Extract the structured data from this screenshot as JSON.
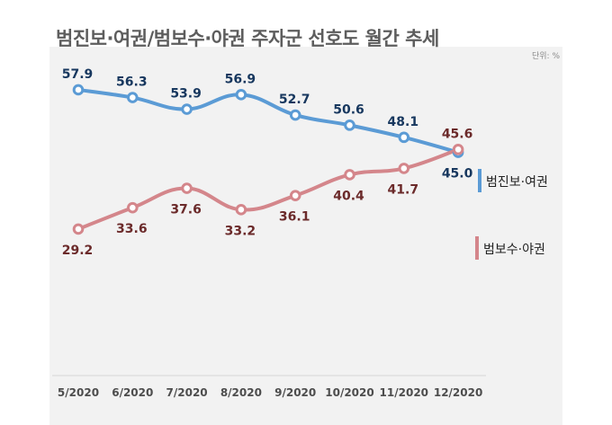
{
  "title": "범진보·여권/범보수·야권 주자군 선호도 월간 추세",
  "unit_label": "단위: %",
  "colors": {
    "progressive": "#5b9bd5",
    "conservative": "#d4868b",
    "progressive_label": "#17375e",
    "conservative_label": "#6b2a2a"
  },
  "chart_data": {
    "type": "line",
    "title": "범진보·여권/범보수·야권 주자군 선호도 월간 추세",
    "xlabel": "",
    "ylabel": "",
    "unit": "%",
    "x": [
      "5/2020",
      "6/2020",
      "7/2020",
      "8/2020",
      "9/2020",
      "10/2020",
      "11/2020",
      "12/2020"
    ],
    "ylim": [
      20,
      65
    ],
    "grid": false,
    "legend_position": "right",
    "series": [
      {
        "name": "범진보·여권",
        "values": [
          57.9,
          56.3,
          53.9,
          56.9,
          52.7,
          50.6,
          48.1,
          45.0
        ],
        "labels": [
          "57.9",
          "56.3",
          "53.9",
          "56.9",
          "52.7",
          "50.6",
          "48.1",
          "45.0"
        ]
      },
      {
        "name": "범보수·야권",
        "values": [
          29.2,
          33.6,
          37.6,
          33.2,
          36.1,
          40.4,
          41.7,
          45.6
        ],
        "labels": [
          "29.2",
          "33.6",
          "37.6",
          "33.2",
          "36.1",
          "40.4",
          "41.7",
          "45.6"
        ]
      }
    ]
  }
}
